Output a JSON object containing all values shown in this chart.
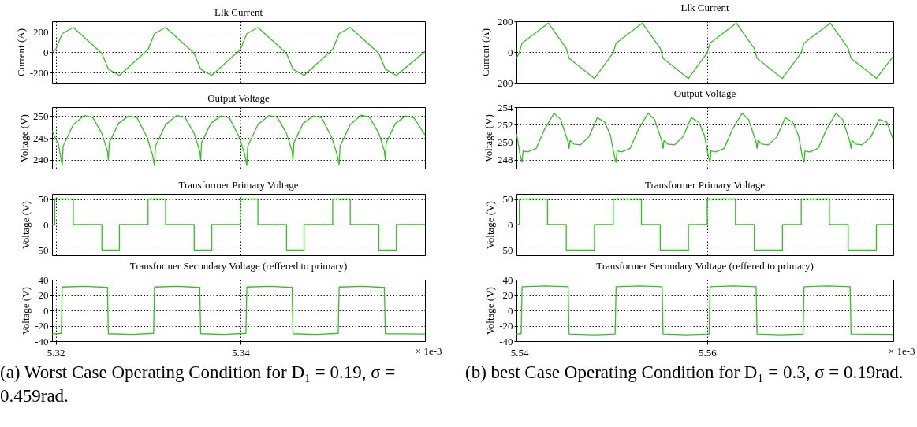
{
  "chart_data": [
    {
      "type": "line",
      "title": "Llk Current",
      "ylabel": "Current (A)",
      "color": "#2dc51a",
      "grid": true,
      "tick_labels": "y",
      "xlim": [
        5.3196,
        5.36
      ],
      "xticks": [
        5.32,
        5.34
      ],
      "ylim": [
        -300,
        300
      ],
      "yticks": [
        -200,
        0,
        200
      ],
      "x": [
        5.3196,
        5.32,
        5.3207,
        5.3219,
        5.325,
        5.3257,
        5.3269,
        5.33,
        5.3307,
        5.3319,
        5.335,
        5.3357,
        5.3369,
        5.34,
        5.3407,
        5.3419,
        5.345,
        5.3457,
        5.3469,
        5.35,
        5.3507,
        5.3519,
        5.355,
        5.3557,
        5.3569,
        5.36
      ],
      "values": [
        0,
        25,
        179,
        240,
        -14,
        -168,
        -229,
        25,
        179,
        240,
        -14,
        -168,
        -229,
        25,
        179,
        240,
        -14,
        -168,
        -229,
        25,
        179,
        240,
        -14,
        -168,
        -229,
        5
      ]
    },
    {
      "type": "line",
      "title": "Output Voltage",
      "ylabel": "Voltage (V)",
      "color": "#2dc51a",
      "grid": true,
      "tick_labels": "y",
      "xlim": [
        5.3196,
        5.36
      ],
      "xticks": [
        5.32,
        5.34
      ],
      "ylim": [
        238,
        252
      ],
      "yticks": [
        240,
        245,
        250
      ],
      "x": [
        5.3196,
        5.3203,
        5.3207,
        5.3208,
        5.3219,
        5.3231,
        5.324,
        5.325,
        5.3256,
        5.3257,
        5.3258,
        5.3268,
        5.3279,
        5.3288,
        5.3299,
        5.3305,
        5.3307,
        5.3308,
        5.3319,
        5.3331,
        5.334,
        5.335,
        5.3356,
        5.3357,
        5.3358,
        5.3368,
        5.3379,
        5.3388,
        5.3399,
        5.3405,
        5.3407,
        5.3408,
        5.3419,
        5.3431,
        5.344,
        5.345,
        5.3456,
        5.3457,
        5.3458,
        5.3468,
        5.3479,
        5.3488,
        5.3499,
        5.3505,
        5.3507,
        5.3508,
        5.3519,
        5.3531,
        5.354,
        5.355,
        5.3556,
        5.3557,
        5.3558,
        5.3568,
        5.3579,
        5.3588,
        5.36
      ],
      "values": [
        246.6,
        243.5,
        238.7,
        243.1,
        248,
        250.1,
        249.7,
        246,
        242,
        240,
        243.9,
        248.3,
        250,
        249.6,
        245.1,
        241,
        238.7,
        243.1,
        248,
        250.1,
        249.7,
        246,
        242,
        240,
        243.9,
        248.3,
        250,
        249.6,
        245.1,
        241,
        238.7,
        243.1,
        248,
        250.1,
        249.7,
        246,
        242,
        240,
        243.9,
        248.3,
        250,
        249.6,
        245.1,
        241,
        238.9,
        243.1,
        248,
        250.2,
        249.7,
        246,
        242,
        240,
        243.9,
        248.3,
        250,
        249.6,
        245.7
      ]
    },
    {
      "type": "step",
      "title": "Transformer Primary Voltage",
      "ylabel": "Voltage (V)",
      "color": "#2dc51a",
      "grid": true,
      "tick_labels": "y",
      "xlim": [
        5.3196,
        5.36
      ],
      "xticks": [
        5.32,
        5.34
      ],
      "ylim": [
        -60,
        60
      ],
      "yticks": [
        -50,
        0,
        50
      ],
      "x": [
        5.3196,
        5.3199,
        5.3219,
        5.325,
        5.3269,
        5.33,
        5.3319,
        5.335,
        5.3369,
        5.34,
        5.3419,
        5.345,
        5.3469,
        5.35,
        5.3519,
        5.355,
        5.3569,
        5.36
      ],
      "values": [
        0,
        50,
        0,
        -50,
        0,
        50,
        0,
        -50,
        0,
        50,
        0,
        -50,
        0,
        50,
        0,
        -50,
        0,
        0
      ]
    },
    {
      "type": "line",
      "title": "Transformer Secondary Voltage (reffered to primary)",
      "ylabel": "Voltage (V)",
      "xlabel": "× 1e-3",
      "color": "#2dc51a",
      "grid": true,
      "xlim": [
        5.3196,
        5.36
      ],
      "xticks": [
        5.32,
        5.34
      ],
      "ylim": [
        -40,
        40
      ],
      "yticks": [
        -40,
        -20,
        0,
        20,
        40
      ],
      "x": [
        5.3196,
        5.3206,
        5.3207,
        5.3232,
        5.3256,
        5.3257,
        5.3282,
        5.3306,
        5.3307,
        5.3332,
        5.3356,
        5.3357,
        5.3382,
        5.3406,
        5.3407,
        5.3432,
        5.3456,
        5.3457,
        5.3482,
        5.3506,
        5.3507,
        5.3532,
        5.3556,
        5.3557,
        5.36
      ],
      "values": [
        -31,
        -30,
        30.5,
        31.5,
        30,
        -30.5,
        -31.5,
        -30,
        30.5,
        31.5,
        30,
        -30.5,
        -31.5,
        -30,
        30.5,
        31.5,
        30,
        -30.5,
        -31.5,
        -30,
        30.5,
        31.5,
        30,
        -30.5,
        -31
      ],
      "annotations": [
        "(a) Worst Case Operating Condition for D₁ = 0.19, σ = 0.459rad."
      ]
    },
    {
      "type": "line",
      "title": "Llk Current",
      "ylabel": "Current (A)",
      "color": "#2dc51a",
      "grid": true,
      "tick_labels": "y",
      "xlim": [
        5.5397,
        5.5798
      ],
      "xticks": [
        5.54,
        5.56
      ],
      "ylim": [
        -200,
        200
      ],
      "yticks": [
        -200,
        0,
        200
      ],
      "x": [
        5.5397,
        5.54,
        5.5403,
        5.5431,
        5.545,
        5.5453,
        5.548,
        5.55,
        5.5503,
        5.5531,
        5.555,
        5.5553,
        5.558,
        5.56,
        5.5603,
        5.5631,
        5.565,
        5.5653,
        5.568,
        5.57,
        5.5703,
        5.5731,
        5.575,
        5.5753,
        5.578,
        5.5798
      ],
      "values": [
        -41,
        -4,
        58,
        188,
        24,
        -41,
        -173,
        -4,
        58,
        188,
        24,
        -41,
        -173,
        -4,
        58,
        188,
        24,
        -41,
        -173,
        -4,
        58,
        188,
        24,
        -41,
        -172,
        -26
      ]
    },
    {
      "type": "line",
      "title": "Output Voltage",
      "ylabel": "Voltage (V)",
      "color": "#2dc51a",
      "grid": true,
      "tick_labels": "y",
      "xlim": [
        5.5397,
        5.5798
      ],
      "xticks": [
        5.54,
        5.56
      ],
      "ylim": [
        247,
        254
      ],
      "yticks": [
        248,
        250,
        252,
        254
      ],
      "x": [
        5.5397,
        5.5399,
        5.5401,
        5.5403,
        5.5404,
        5.5409,
        5.5418,
        5.5427,
        5.5437,
        5.5444,
        5.5449,
        5.5452,
        5.5453,
        5.5454,
        5.5458,
        5.5465,
        5.5474,
        5.5483,
        5.5491,
        5.5497,
        5.5501,
        5.5503,
        5.5504,
        5.5509,
        5.5518,
        5.5527,
        5.5537,
        5.5544,
        5.5549,
        5.5552,
        5.5553,
        5.5554,
        5.5558,
        5.5565,
        5.5574,
        5.5583,
        5.5591,
        5.5597,
        5.5601,
        5.5603,
        5.5604,
        5.5609,
        5.5618,
        5.5627,
        5.5637,
        5.5644,
        5.5649,
        5.5652,
        5.5653,
        5.5654,
        5.5658,
        5.5665,
        5.5674,
        5.5683,
        5.5691,
        5.5697,
        5.5701,
        5.5703,
        5.5704,
        5.5709,
        5.5718,
        5.5727,
        5.5737,
        5.5744,
        5.5749,
        5.5752,
        5.5753,
        5.5754,
        5.5758,
        5.5765,
        5.5774,
        5.5783,
        5.5791,
        5.5798
      ],
      "values": [
        251,
        249.8,
        248.5,
        247.7,
        249,
        248.9,
        249.3,
        251.5,
        253.3,
        252.6,
        251,
        250,
        249.3,
        250.2,
        249.8,
        249.7,
        250.6,
        252.8,
        252.3,
        250.8,
        248.5,
        247.7,
        249,
        248.9,
        249.3,
        251.5,
        253.3,
        252.6,
        251,
        250,
        249.3,
        250.2,
        249.8,
        249.7,
        250.6,
        252.8,
        252.3,
        250.8,
        248.5,
        247.7,
        249,
        248.9,
        249.3,
        251.5,
        253.3,
        252.6,
        251,
        250,
        249.3,
        250.2,
        249.8,
        249.7,
        250.6,
        252.8,
        252.3,
        250.8,
        248.5,
        247.7,
        249,
        248.9,
        249.3,
        251.5,
        253.3,
        252.6,
        251,
        250,
        249.3,
        250.2,
        249.8,
        249.7,
        250.6,
        252.6,
        252.3,
        250.3
      ]
    },
    {
      "type": "step",
      "title": "Transformer Primary Voltage",
      "ylabel": "Voltage (V)",
      "color": "#2dc51a",
      "grid": true,
      "tick_labels": "y",
      "xlim": [
        5.5397,
        5.5798
      ],
      "xticks": [
        5.54,
        5.56
      ],
      "ylim": [
        -60,
        60
      ],
      "yticks": [
        -50,
        0,
        50
      ],
      "x": [
        5.5397,
        5.54,
        5.543,
        5.545,
        5.548,
        5.55,
        5.553,
        5.555,
        5.558,
        5.56,
        5.563,
        5.565,
        5.568,
        5.57,
        5.573,
        5.575,
        5.578,
        5.5798
      ],
      "values": [
        0,
        50,
        0,
        -50,
        0,
        50,
        0,
        -50,
        0,
        50,
        0,
        -50,
        0,
        50,
        0,
        -50,
        0,
        0
      ]
    },
    {
      "type": "line",
      "title": "Transformer Secondary Voltage (reffered to primary)",
      "ylabel": "Voltage (V)",
      "xlabel": "× 1e-3",
      "color": "#2dc51a",
      "grid": true,
      "xlim": [
        5.5397,
        5.5798
      ],
      "xticks": [
        5.54,
        5.56
      ],
      "ylim": [
        -40,
        40
      ],
      "yticks": [
        -40,
        -20,
        0,
        20,
        40
      ],
      "x": [
        5.5397,
        5.5402,
        5.5403,
        5.5428,
        5.5452,
        5.5453,
        5.5478,
        5.5502,
        5.5503,
        5.5528,
        5.5552,
        5.5553,
        5.5578,
        5.5602,
        5.5603,
        5.5628,
        5.5652,
        5.5653,
        5.5678,
        5.5702,
        5.5703,
        5.5728,
        5.5752,
        5.5753,
        5.5798
      ],
      "values": [
        -31,
        -30.5,
        31,
        32,
        31,
        -31,
        -32,
        -31,
        31,
        32,
        31,
        -31,
        -32,
        -31,
        31,
        32,
        31,
        -31,
        -32,
        -31,
        31,
        32,
        31,
        -31,
        -31.5
      ],
      "annotations": [
        "(b) best Case Operating Condition for D₁ = 0.3, σ = 0.19rad."
      ]
    }
  ]
}
